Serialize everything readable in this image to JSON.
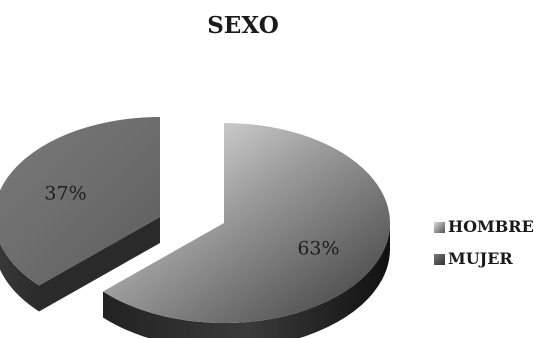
{
  "chart_data": {
    "type": "pie",
    "title": "SEXO",
    "categories": [
      "HOMBRE",
      "MUJER"
    ],
    "values": [
      63,
      37
    ],
    "value_labels": [
      "63%",
      "37%"
    ],
    "style": "3d-exploded",
    "legend_position": "right",
    "colors": {
      "HOMBRE": "#8c8c8c",
      "MUJER": "#5a5a5a"
    }
  }
}
